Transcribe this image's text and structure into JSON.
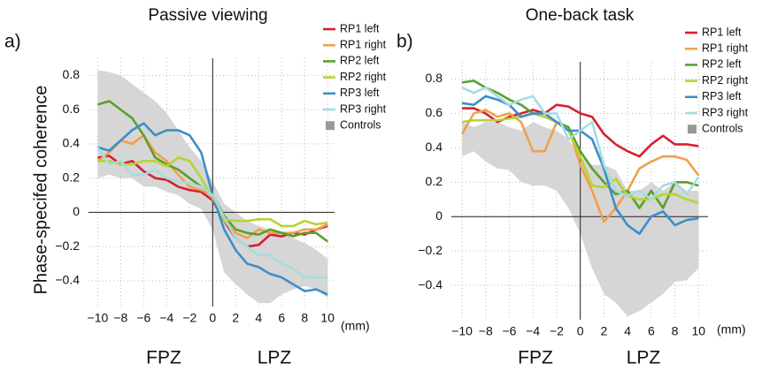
{
  "chart_data": [
    {
      "type": "line",
      "panel_label": "a)",
      "title": "Passive viewing",
      "y_label": "Phase-specifed coherence",
      "x_unit": "(mm)",
      "annotations": [
        "FPZ",
        "LPZ"
      ],
      "x": [
        -10,
        -9,
        -8,
        -7,
        -6,
        -5,
        -4,
        -3,
        -2,
        -1,
        0,
        1,
        2,
        3,
        4,
        5,
        6,
        7,
        8,
        9,
        10
      ],
      "xlim": [
        -10.8,
        10.6
      ],
      "ylim": [
        -0.55,
        0.9
      ],
      "grid": true,
      "legend": "top-right",
      "xticks": [
        {
          "value": -10,
          "label": "−10"
        },
        {
          "value": -8,
          "label": "−8"
        },
        {
          "value": -6,
          "label": "−6"
        },
        {
          "value": -4,
          "label": "−4"
        },
        {
          "value": -2,
          "label": "−2"
        },
        0,
        2,
        4,
        6,
        8,
        10
      ],
      "yticks": [
        {
          "value": -0.4,
          "label": "−0.4"
        },
        {
          "value": -0.2,
          "label": "−0.2"
        },
        0,
        0.2,
        0.4,
        0.6,
        0.8
      ],
      "series": [
        {
          "name": "RP1 left",
          "color": "#d7202f",
          "values": [
            0.32,
            0.33,
            0.28,
            0.3,
            0.24,
            0.2,
            0.19,
            0.15,
            0.13,
            0.12,
            0.07,
            -0.05,
            -0.15,
            -0.2,
            -0.19,
            -0.13,
            -0.14,
            -0.12,
            -0.13,
            -0.1,
            -0.08
          ]
        },
        {
          "name": "RP1 right",
          "color": "#f0a04b",
          "values": [
            0.3,
            0.35,
            0.42,
            0.4,
            0.45,
            0.35,
            0.3,
            0.22,
            0.15,
            0.13,
            0.1,
            -0.05,
            -0.12,
            -0.15,
            -0.1,
            -0.12,
            -0.12,
            -0.12,
            -0.1,
            -0.1,
            -0.07
          ]
        },
        {
          "name": "RP2 left",
          "color": "#5aa02c",
          "values": [
            0.63,
            0.65,
            0.6,
            0.55,
            0.45,
            0.32,
            0.28,
            0.25,
            0.2,
            0.15,
            0.1,
            -0.02,
            -0.1,
            -0.12,
            -0.13,
            -0.1,
            -0.12,
            -0.14,
            -0.12,
            -0.12,
            -0.17
          ]
        },
        {
          "name": "RP2 right",
          "color": "#b5d334",
          "values": [
            0.3,
            0.3,
            0.28,
            0.28,
            0.3,
            0.3,
            0.27,
            0.32,
            0.3,
            0.2,
            0.08,
            -0.04,
            -0.05,
            -0.05,
            -0.04,
            -0.04,
            -0.08,
            -0.08,
            -0.05,
            -0.07,
            -0.06
          ]
        },
        {
          "name": "RP3 left",
          "color": "#3a8fc7",
          "values": [
            0.38,
            0.36,
            0.42,
            0.48,
            0.52,
            0.45,
            0.48,
            0.48,
            0.45,
            0.35,
            0.1,
            -0.1,
            -0.22,
            -0.3,
            -0.32,
            -0.36,
            -0.38,
            -0.42,
            -0.46,
            -0.45,
            -0.48
          ]
        },
        {
          "name": "RP3 right",
          "color": "#a6dce0",
          "values": [
            0.38,
            0.28,
            0.3,
            0.22,
            0.22,
            0.25,
            0.2,
            0.18,
            0.17,
            0.15,
            0.1,
            -0.03,
            -0.15,
            -0.2,
            -0.25,
            -0.25,
            -0.3,
            -0.33,
            -0.38,
            -0.38,
            -0.38
          ]
        },
        {
          "name": "Controls",
          "color": "#d6d6d6",
          "upper": [
            0.83,
            0.82,
            0.8,
            0.75,
            0.7,
            0.65,
            0.58,
            0.48,
            0.38,
            0.3,
            0.18,
            0.05,
            0.0,
            -0.05,
            -0.08,
            -0.1,
            -0.12,
            -0.15,
            -0.18,
            -0.22,
            -0.27
          ],
          "lower": [
            0.2,
            0.22,
            0.2,
            0.2,
            0.15,
            0.15,
            0.12,
            0.1,
            0.05,
            0.02,
            -0.1,
            -0.35,
            -0.42,
            -0.48,
            -0.53,
            -0.53,
            -0.48,
            -0.45,
            -0.43,
            -0.45,
            -0.5
          ]
        }
      ]
    },
    {
      "type": "line",
      "panel_label": "b)",
      "title": "One-back task",
      "x_unit": "(mm)",
      "annotations": [
        "FPZ",
        "LPZ"
      ],
      "x": [
        -10,
        -9,
        -8,
        -7,
        -6,
        -5,
        -4,
        -3,
        -2,
        -1,
        0,
        1,
        2,
        3,
        4,
        5,
        6,
        7,
        8,
        9,
        10
      ],
      "xlim": [
        -10.9,
        10.8
      ],
      "ylim": [
        -0.6,
        0.9
      ],
      "grid": true,
      "legend": "top-right",
      "xticks": [
        {
          "value": -10,
          "label": "−10"
        },
        {
          "value": -8,
          "label": "−8"
        },
        {
          "value": -6,
          "label": "−6"
        },
        {
          "value": -4,
          "label": "−4"
        },
        {
          "value": -2,
          "label": "−2"
        },
        0,
        2,
        4,
        6,
        8,
        10
      ],
      "yticks": [
        {
          "value": -0.4,
          "label": "−0.4"
        },
        {
          "value": -0.2,
          "label": "−0.2"
        },
        0,
        0.2,
        0.4,
        0.6,
        0.8
      ],
      "series": [
        {
          "name": "RP1 left",
          "color": "#d7202f",
          "values": [
            0.63,
            0.63,
            0.6,
            0.55,
            0.58,
            0.6,
            0.62,
            0.6,
            0.65,
            0.64,
            0.6,
            0.58,
            0.48,
            0.42,
            0.38,
            0.35,
            0.42,
            0.47,
            0.42,
            0.42,
            0.41
          ]
        },
        {
          "name": "RP1 right",
          "color": "#f0a04b",
          "values": [
            0.48,
            0.6,
            0.62,
            0.58,
            0.6,
            0.55,
            0.38,
            0.38,
            0.55,
            0.52,
            0.3,
            0.15,
            -0.03,
            0.05,
            0.15,
            0.28,
            0.32,
            0.35,
            0.35,
            0.33,
            0.24
          ]
        },
        {
          "name": "RP2 left",
          "color": "#5aa02c",
          "values": [
            0.78,
            0.79,
            0.75,
            0.72,
            0.68,
            0.65,
            0.6,
            0.58,
            0.55,
            0.52,
            0.38,
            0.28,
            0.2,
            0.13,
            0.15,
            0.05,
            0.15,
            0.05,
            0.2,
            0.2,
            0.18
          ]
        },
        {
          "name": "RP2 right",
          "color": "#b5d334",
          "values": [
            0.55,
            0.56,
            0.56,
            0.56,
            0.57,
            0.58,
            0.6,
            0.58,
            0.55,
            0.5,
            0.35,
            0.18,
            0.17,
            0.22,
            0.12,
            0.1,
            0.1,
            0.13,
            0.13,
            0.1,
            0.08
          ]
        },
        {
          "name": "RP3 left",
          "color": "#3a8fc7",
          "values": [
            0.66,
            0.65,
            0.7,
            0.68,
            0.65,
            0.58,
            0.6,
            0.6,
            0.55,
            0.5,
            0.5,
            0.45,
            0.28,
            0.05,
            -0.05,
            -0.1,
            0.0,
            0.03,
            -0.05,
            -0.02,
            -0.01
          ]
        },
        {
          "name": "RP3 right",
          "color": "#a6dce0",
          "values": [
            0.75,
            0.72,
            0.75,
            0.7,
            0.65,
            0.68,
            0.7,
            0.6,
            0.6,
            0.45,
            0.5,
            0.55,
            0.3,
            0.15,
            0.12,
            0.15,
            0.1,
            0.18,
            0.2,
            0.13,
            0.23
          ]
        },
        {
          "name": "Controls",
          "color": "#d6d6d6",
          "upper": [
            0.55,
            0.52,
            0.55,
            0.55,
            0.52,
            0.5,
            0.55,
            0.52,
            0.5,
            0.45,
            0.35,
            0.3,
            0.3,
            0.27,
            0.15,
            0.15,
            0.2,
            0.15,
            0.2,
            0.15,
            0.15
          ],
          "lower": [
            0.35,
            0.38,
            0.32,
            0.28,
            0.27,
            0.2,
            0.18,
            0.18,
            0.15,
            0.05,
            -0.1,
            -0.3,
            -0.45,
            -0.5,
            -0.58,
            -0.55,
            -0.5,
            -0.45,
            -0.38,
            -0.37,
            -0.3
          ]
        }
      ]
    }
  ]
}
